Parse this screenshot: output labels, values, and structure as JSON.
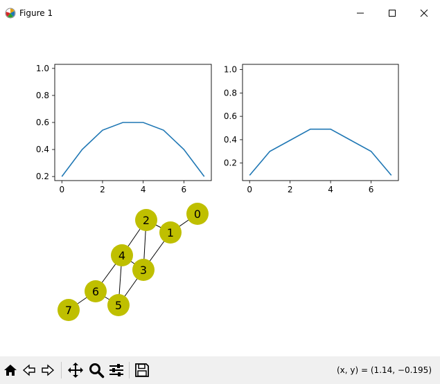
{
  "window": {
    "title": "Figure 1",
    "icon": "matplotlib-logo-icon",
    "controls": [
      "minimize-icon",
      "maximize-icon",
      "close-icon"
    ]
  },
  "toolbar": {
    "buttons": [
      "home-icon",
      "back-arrow-icon",
      "forward-arrow-icon",
      "pan-move-icon",
      "zoom-magnifier-icon",
      "configure-subplots-icon",
      "save-floppy-icon"
    ],
    "coordinates": "(x, y) = (1.14, −0.195)"
  },
  "colors": {
    "line": "#1f77b4",
    "node": "#bfbf00",
    "edge": "#000000",
    "toolbar_bg": "#f0f0f0"
  },
  "chart_data": [
    {
      "type": "line",
      "x": [
        0,
        1,
        2,
        3,
        4,
        5,
        6,
        7
      ],
      "series": [
        {
          "values": [
            0.2,
            0.4,
            0.543,
            0.6,
            0.6,
            0.543,
            0.4,
            0.2
          ]
        }
      ],
      "xlim": [
        -0.35,
        7.35
      ],
      "ylim": [
        0.17,
        1.03
      ],
      "xticks": [
        "0",
        "2",
        "4",
        "6"
      ],
      "yticks": [
        "0.2",
        "0.4",
        "0.6",
        "0.8",
        "1.0"
      ]
    },
    {
      "type": "line",
      "x": [
        0,
        1,
        2,
        3,
        4,
        5,
        6,
        7
      ],
      "series": [
        {
          "values": [
            0.095,
            0.3,
            0.395,
            0.49,
            0.49,
            0.395,
            0.3,
            0.095
          ]
        }
      ],
      "xlim": [
        -0.35,
        7.35
      ],
      "ylim": [
        0.05,
        1.045
      ],
      "xticks": [
        "0",
        "2",
        "4",
        "6"
      ],
      "yticks": [
        "0.2",
        "0.4",
        "0.6",
        "0.8",
        "1.0"
      ]
    }
  ],
  "graph": {
    "nodes": [
      "0",
      "1",
      "2",
      "3",
      "4",
      "5",
      "6",
      "7"
    ],
    "edges": [
      [
        "0",
        "1"
      ],
      [
        "1",
        "2"
      ],
      [
        "1",
        "3"
      ],
      [
        "2",
        "3"
      ],
      [
        "2",
        "4"
      ],
      [
        "4",
        "3"
      ],
      [
        "4",
        "5"
      ],
      [
        "4",
        "6"
      ],
      [
        "3",
        "5"
      ],
      [
        "5",
        "6"
      ],
      [
        "6",
        "7"
      ]
    ]
  }
}
